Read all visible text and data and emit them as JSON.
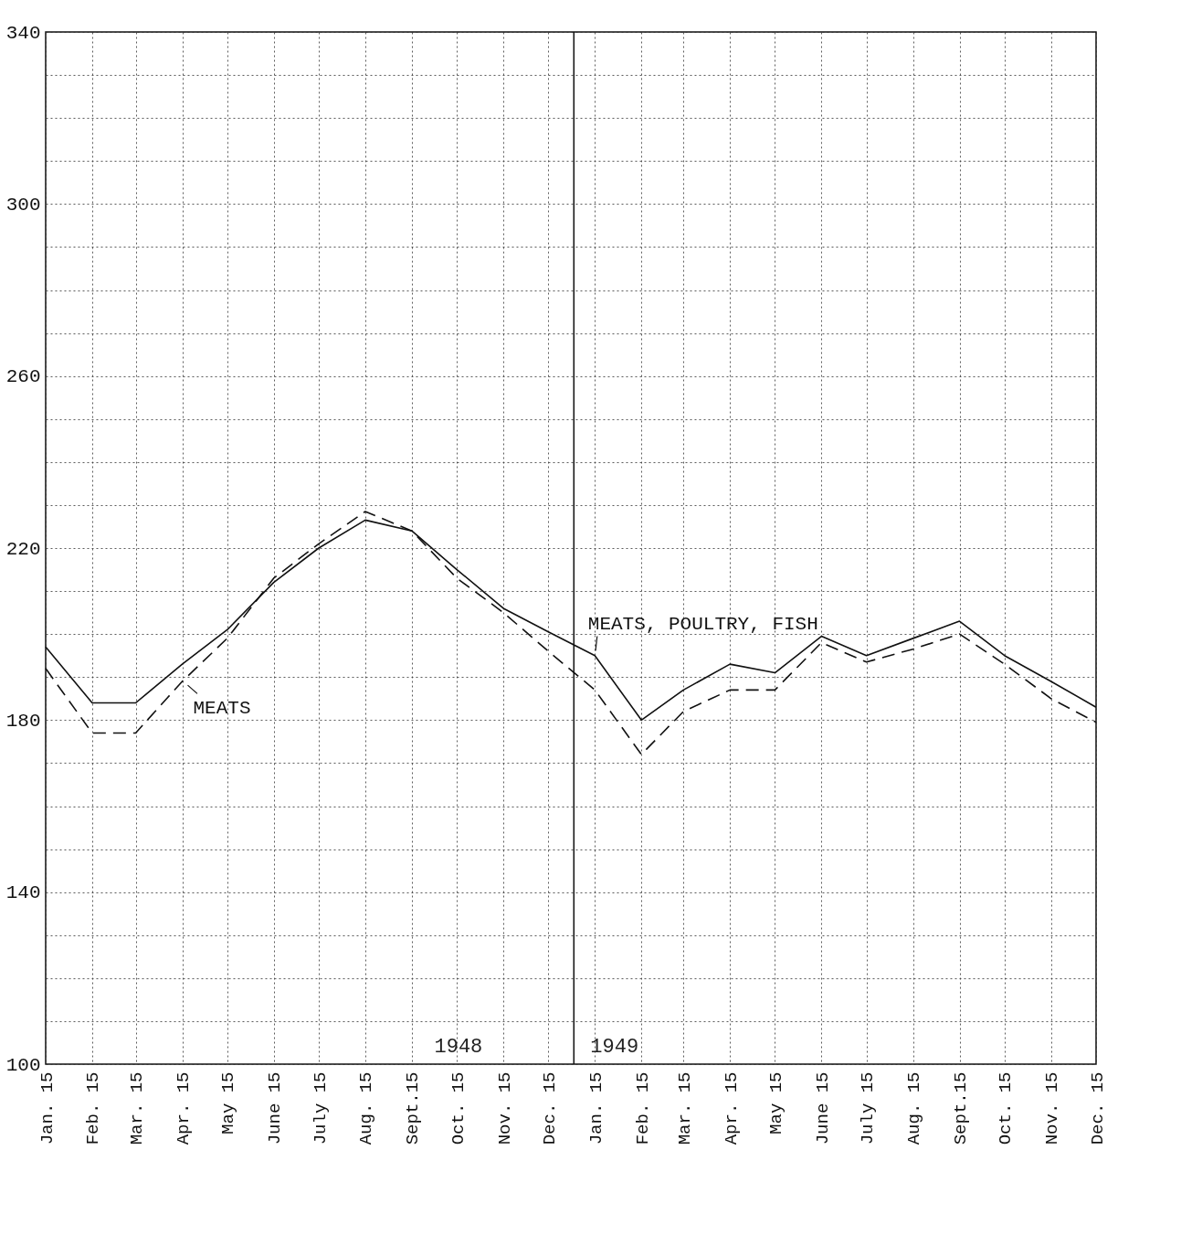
{
  "chart_data": {
    "type": "line",
    "x": [
      "1948-01-15",
      "1948-02-15",
      "1948-03-15",
      "1948-04-15",
      "1948-05-15",
      "1948-06-15",
      "1948-07-15",
      "1948-08-15",
      "1948-09-15",
      "1948-10-15",
      "1948-11-15",
      "1948-12-15",
      "1949-01-15",
      "1949-02-15",
      "1949-03-15",
      "1949-04-15",
      "1949-05-15",
      "1949-06-15",
      "1949-07-15",
      "1949-08-15",
      "1949-09-15",
      "1949-10-15",
      "1949-11-15",
      "1949-12-15"
    ],
    "series": [
      {
        "name": "MEATS, POULTRY, FISH",
        "color": "#111111",
        "line_style": "solid",
        "values": [
          197,
          184,
          184,
          193,
          201,
          212,
          220,
          226.5,
          224,
          215,
          206,
          200.5,
          195,
          180,
          187,
          193,
          191,
          199.5,
          195,
          199,
          203,
          195,
          189,
          183
        ]
      },
      {
        "name": "MEATS",
        "color": "#111111",
        "line_style": "dashed",
        "values": [
          192,
          177,
          177,
          189,
          199,
          213,
          221,
          228.5,
          224,
          213,
          205,
          196,
          187,
          172,
          182,
          187,
          187,
          198,
          193.5,
          196.5,
          200,
          193,
          185,
          179.5
        ]
      }
    ],
    "xlim": [
      "1948-01-15",
      "1949-12-15"
    ],
    "xticks": [
      {
        "value": "1948-01-15",
        "label": "Jan. 15"
      },
      {
        "value": "1948-02-15",
        "label": "Feb. 15"
      },
      {
        "value": "1948-03-15",
        "label": "Mar. 15"
      },
      {
        "value": "1948-04-15",
        "label": "Apr. 15"
      },
      {
        "value": "1948-05-15",
        "label": "May 15"
      },
      {
        "value": "1948-06-15",
        "label": "June 15"
      },
      {
        "value": "1948-07-15",
        "label": "July 15"
      },
      {
        "value": "1948-08-15",
        "label": "Aug. 15"
      },
      {
        "value": "1948-09-15",
        "label": "Sept.15"
      },
      {
        "value": "1948-10-15",
        "label": "Oct. 15"
      },
      {
        "value": "1948-11-15",
        "label": "Nov. 15"
      },
      {
        "value": "1948-12-15",
        "label": "Dec. 15"
      },
      {
        "value": "1949-01-15",
        "label": "Jan. 15"
      },
      {
        "value": "1949-02-15",
        "label": "Feb. 15"
      },
      {
        "value": "1949-03-15",
        "label": "Mar. 15"
      },
      {
        "value": "1949-04-15",
        "label": "Apr. 15"
      },
      {
        "value": "1949-05-15",
        "label": "May 15"
      },
      {
        "value": "1949-06-15",
        "label": "June 15"
      },
      {
        "value": "1949-07-15",
        "label": "July 15"
      },
      {
        "value": "1949-08-15",
        "label": "Aug. 15"
      },
      {
        "value": "1949-09-15",
        "label": "Sept.15"
      },
      {
        "value": "1949-10-15",
        "label": "Oct. 15"
      },
      {
        "value": "1949-11-15",
        "label": "Nov. 15"
      },
      {
        "value": "1949-12-15",
        "label": "Dec. 15"
      }
    ],
    "ylim": [
      100,
      340
    ],
    "yticks": [
      100,
      {
        "value": 110,
        "label": null
      },
      {
        "value": 120,
        "label": null
      },
      {
        "value": 130,
        "label": null
      },
      140,
      {
        "value": 150,
        "label": null
      },
      {
        "value": 160,
        "label": null
      },
      {
        "value": 170,
        "label": null
      },
      180,
      {
        "value": 190,
        "label": null
      },
      {
        "value": 200,
        "label": null
      },
      {
        "value": 210,
        "label": null
      },
      220,
      {
        "value": 230,
        "label": null
      },
      {
        "value": 240,
        "label": null
      },
      {
        "value": 250,
        "label": null
      },
      260,
      {
        "value": 270,
        "label": null
      },
      {
        "value": 280,
        "label": null
      },
      {
        "value": 290,
        "label": null
      },
      300,
      {
        "value": 310,
        "label": null
      },
      {
        "value": 320,
        "label": null
      },
      {
        "value": 330,
        "label": null
      },
      340
    ],
    "grid": true,
    "marker": "none",
    "ref_lines": [
      {
        "axis": "x",
        "value": "1949-01-01",
        "color": "#111111"
      }
    ],
    "annotations": [
      "1948",
      "1949"
    ]
  }
}
